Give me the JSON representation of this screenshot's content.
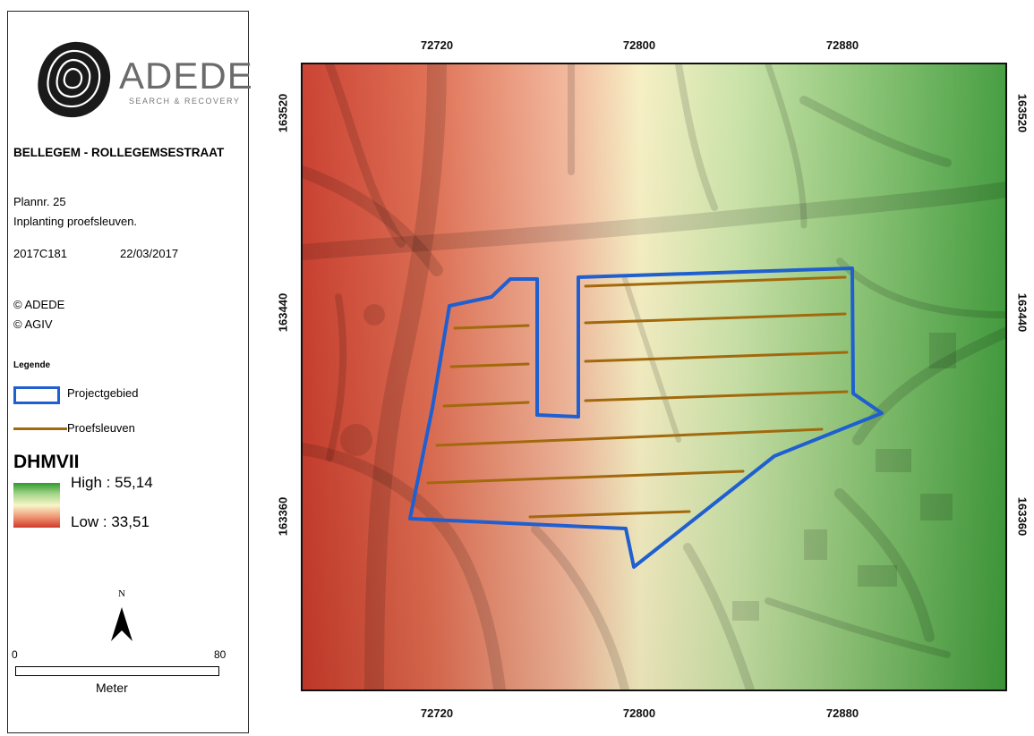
{
  "legend_panel": {
    "brand": "ADEDE",
    "brand_sub": "SEARCH & RECOVERY",
    "site_title": "BELLEGEM - ROLLEGEMSESTRAAT",
    "plan_nr": "Plannr. 25",
    "description": "Inplanting proefsleuven.",
    "project_code": "2017C181",
    "date": "22/03/2017",
    "copyright_1": "© ADEDE",
    "copyright_2": "© AGIV",
    "legend_heading": "Legende",
    "legend_items": [
      {
        "label": "Projectgebied",
        "color": "#1f5fd0"
      },
      {
        "label": "Proefsleuven",
        "color": "#a2690d"
      }
    ],
    "raster_title": "DHMVII",
    "raster_high": "High : 55,14",
    "raster_low": "Low : 33,51",
    "north_label": "N",
    "scalebar": {
      "start": "0",
      "end": "80",
      "unit": "Meter"
    }
  },
  "map": {
    "x_ticks": [
      "72720",
      "72800",
      "72880"
    ],
    "y_ticks": [
      "163520",
      "163440",
      "163360"
    ],
    "colors": {
      "boundary": "#1f5fd0",
      "trench": "#a2690d",
      "elev_low": "#c8382a",
      "elev_mid": "#f6f2c4",
      "elev_high": "#3f9a3a"
    }
  }
}
